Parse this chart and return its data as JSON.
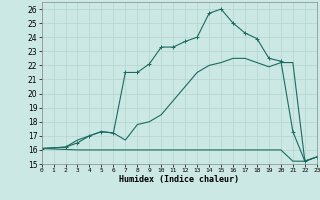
{
  "xlabel": "Humidex (Indice chaleur)",
  "background_color": "#cce8e4",
  "grid_color": "#b8d8d4",
  "line_color": "#1a6b60",
  "xlim": [
    0,
    23
  ],
  "ylim": [
    15,
    26.5
  ],
  "xticks": [
    0,
    1,
    2,
    3,
    4,
    5,
    6,
    7,
    8,
    9,
    10,
    11,
    12,
    13,
    14,
    15,
    16,
    17,
    18,
    19,
    20,
    21,
    22,
    23
  ],
  "yticks": [
    15,
    16,
    17,
    18,
    19,
    20,
    21,
    22,
    23,
    24,
    25,
    26
  ],
  "line1_x": [
    0,
    3,
    4,
    5,
    6,
    7,
    8,
    9,
    10,
    11,
    12,
    13,
    14,
    15,
    16,
    17,
    18,
    19,
    20,
    21,
    22,
    23
  ],
  "line1_y": [
    16.1,
    16.0,
    16.0,
    16.0,
    16.0,
    16.0,
    16.0,
    16.0,
    16.0,
    16.0,
    16.0,
    16.0,
    16.0,
    16.0,
    16.0,
    16.0,
    16.0,
    16.0,
    16.0,
    15.2,
    15.2,
    15.5
  ],
  "line2_x": [
    0,
    2,
    3,
    4,
    5,
    6,
    7,
    8,
    9,
    10,
    11,
    12,
    13,
    14,
    15,
    16,
    17,
    18,
    19,
    20,
    21,
    22,
    23
  ],
  "line2_y": [
    16.1,
    16.2,
    16.7,
    17.0,
    17.3,
    17.2,
    16.7,
    17.8,
    18.0,
    18.5,
    19.5,
    20.5,
    21.5,
    22.0,
    22.2,
    22.5,
    22.5,
    22.2,
    21.9,
    22.2,
    22.2,
    15.2,
    15.5
  ],
  "line3_x": [
    0,
    2,
    3,
    4,
    5,
    6,
    7,
    8,
    9,
    10,
    11,
    12,
    13,
    14,
    15,
    16,
    17,
    18,
    19,
    20,
    21,
    22,
    23
  ],
  "line3_y": [
    16.1,
    16.2,
    16.5,
    17.0,
    17.3,
    17.2,
    21.5,
    21.5,
    22.1,
    23.3,
    23.3,
    23.7,
    24.0,
    25.7,
    26.0,
    25.0,
    24.3,
    23.9,
    22.5,
    22.3,
    17.3,
    15.2,
    15.5
  ]
}
